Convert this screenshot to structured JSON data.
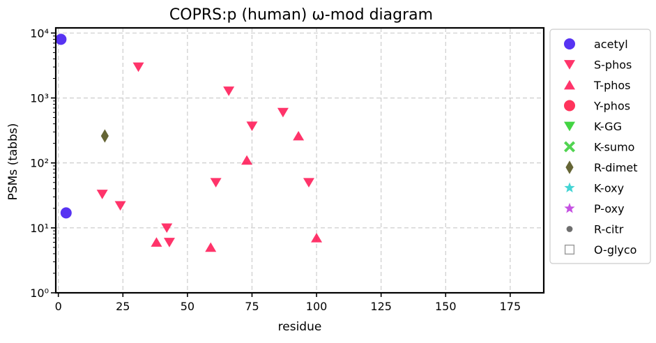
{
  "chart_data": {
    "type": "scatter",
    "title": "COPRS:p (human) ω-mod diagram",
    "xlabel": "residue",
    "ylabel": "PSMs (tabbs)",
    "xlim": [
      -1,
      188
    ],
    "ylim": [
      1,
      12000
    ],
    "yscale": "log",
    "xticks": [
      "0",
      "25",
      "50",
      "75",
      "100",
      "125",
      "150",
      "175"
    ],
    "yticks": [
      "10⁰",
      "10¹",
      "10²",
      "10³",
      "10⁴"
    ],
    "grid": true,
    "legend_position": "outside-right",
    "series": [
      {
        "name": "acetyl",
        "marker": "circle",
        "color": "#3a0ff0",
        "points": [
          {
            "x": 1,
            "y": 8000
          },
          {
            "x": 3,
            "y": 17
          }
        ]
      },
      {
        "name": "S-phos",
        "marker": "triangle-down",
        "color": "#ff1050",
        "points": [
          {
            "x": 31,
            "y": 3000
          },
          {
            "x": 66,
            "y": 1280
          },
          {
            "x": 87,
            "y": 600
          },
          {
            "x": 75,
            "y": 370
          },
          {
            "x": 97,
            "y": 50
          },
          {
            "x": 61,
            "y": 50
          },
          {
            "x": 17,
            "y": 33
          },
          {
            "x": 24,
            "y": 22
          },
          {
            "x": 42,
            "y": 10
          },
          {
            "x": 43,
            "y": 6
          }
        ]
      },
      {
        "name": "T-phos",
        "marker": "triangle-up",
        "color": "#ff1050",
        "points": [
          {
            "x": 93,
            "y": 260
          },
          {
            "x": 73,
            "y": 110
          },
          {
            "x": 38,
            "y": 6
          },
          {
            "x": 59,
            "y": 5
          },
          {
            "x": 100,
            "y": 7
          }
        ]
      },
      {
        "name": "Y-phos",
        "marker": "circle",
        "color": "#ff1040",
        "points": []
      },
      {
        "name": "K-GG",
        "marker": "triangle-down",
        "color": "#22cc22",
        "points": []
      },
      {
        "name": "K-sumo",
        "marker": "x-cross",
        "color": "#33cc33",
        "points": []
      },
      {
        "name": "R-dimet",
        "marker": "diamond",
        "color": "#4a4a12",
        "points": [
          {
            "x": 18,
            "y": 260
          }
        ]
      },
      {
        "name": "K-oxy",
        "marker": "star",
        "color": "#22cccc",
        "points": []
      },
      {
        "name": "P-oxy",
        "marker": "star",
        "color": "#bb33dd",
        "points": []
      },
      {
        "name": "R-citr",
        "marker": "dot",
        "color": "#555555",
        "points": []
      },
      {
        "name": "O-glyco",
        "marker": "square-open",
        "color": "#999999",
        "points": []
      }
    ]
  }
}
